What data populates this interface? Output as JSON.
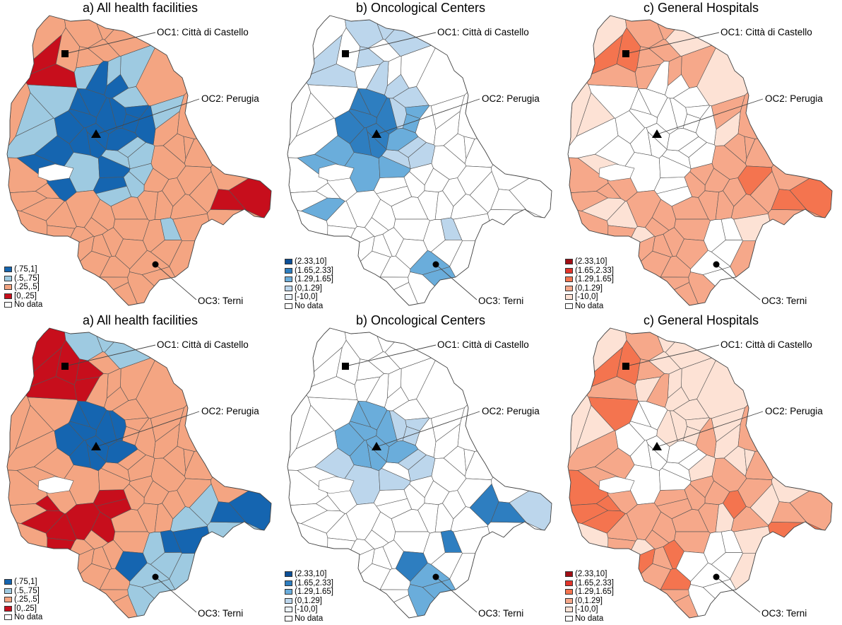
{
  "panels": [
    {
      "title": "a) All health facilities",
      "scheme": "all",
      "legend_key": "all"
    },
    {
      "title": "b) Oncological Centers",
      "scheme": "blue",
      "legend_key": "ratio"
    },
    {
      "title": "c) General Hospitals",
      "scheme": "red",
      "legend_key": "ratio"
    },
    {
      "title": "a) All health facilities",
      "scheme": "all",
      "legend_key": "all"
    },
    {
      "title": "b) Oncological Centers",
      "scheme": "blue",
      "legend_key": "ratio"
    },
    {
      "title": "c) General Hospitals",
      "scheme": "red",
      "legend_key": "ratio"
    }
  ],
  "centers": {
    "oc1": "OC1: Città di Castello",
    "oc2": "OC2: Perugia",
    "oc3": "OC3: Terni"
  },
  "legends": {
    "all": [
      "(.75,1]",
      "(.5,.75]",
      "(.25,.5]",
      "[0,.25]",
      "No data"
    ],
    "ratio": [
      "(2.33,10]",
      "(1.65,2.33]",
      "(1.29,1.65]",
      "(0,1.29]",
      "[-10,0]",
      "No data"
    ]
  },
  "colors": {
    "all": [
      "#1565b0",
      "#9ecae1",
      "#f4a582",
      "#c70e1c",
      "#ffffff"
    ],
    "blue": [
      "#0b4f97",
      "#2e7ec0",
      "#6aaddb",
      "#bcd6ec",
      "#ebf3fb",
      "#ffffff"
    ],
    "red": [
      "#a10d14",
      "#e2342a",
      "#f4744f",
      "#f6a88a",
      "#fde2d5",
      "#ffffff"
    ],
    "border": "#555555"
  }
}
